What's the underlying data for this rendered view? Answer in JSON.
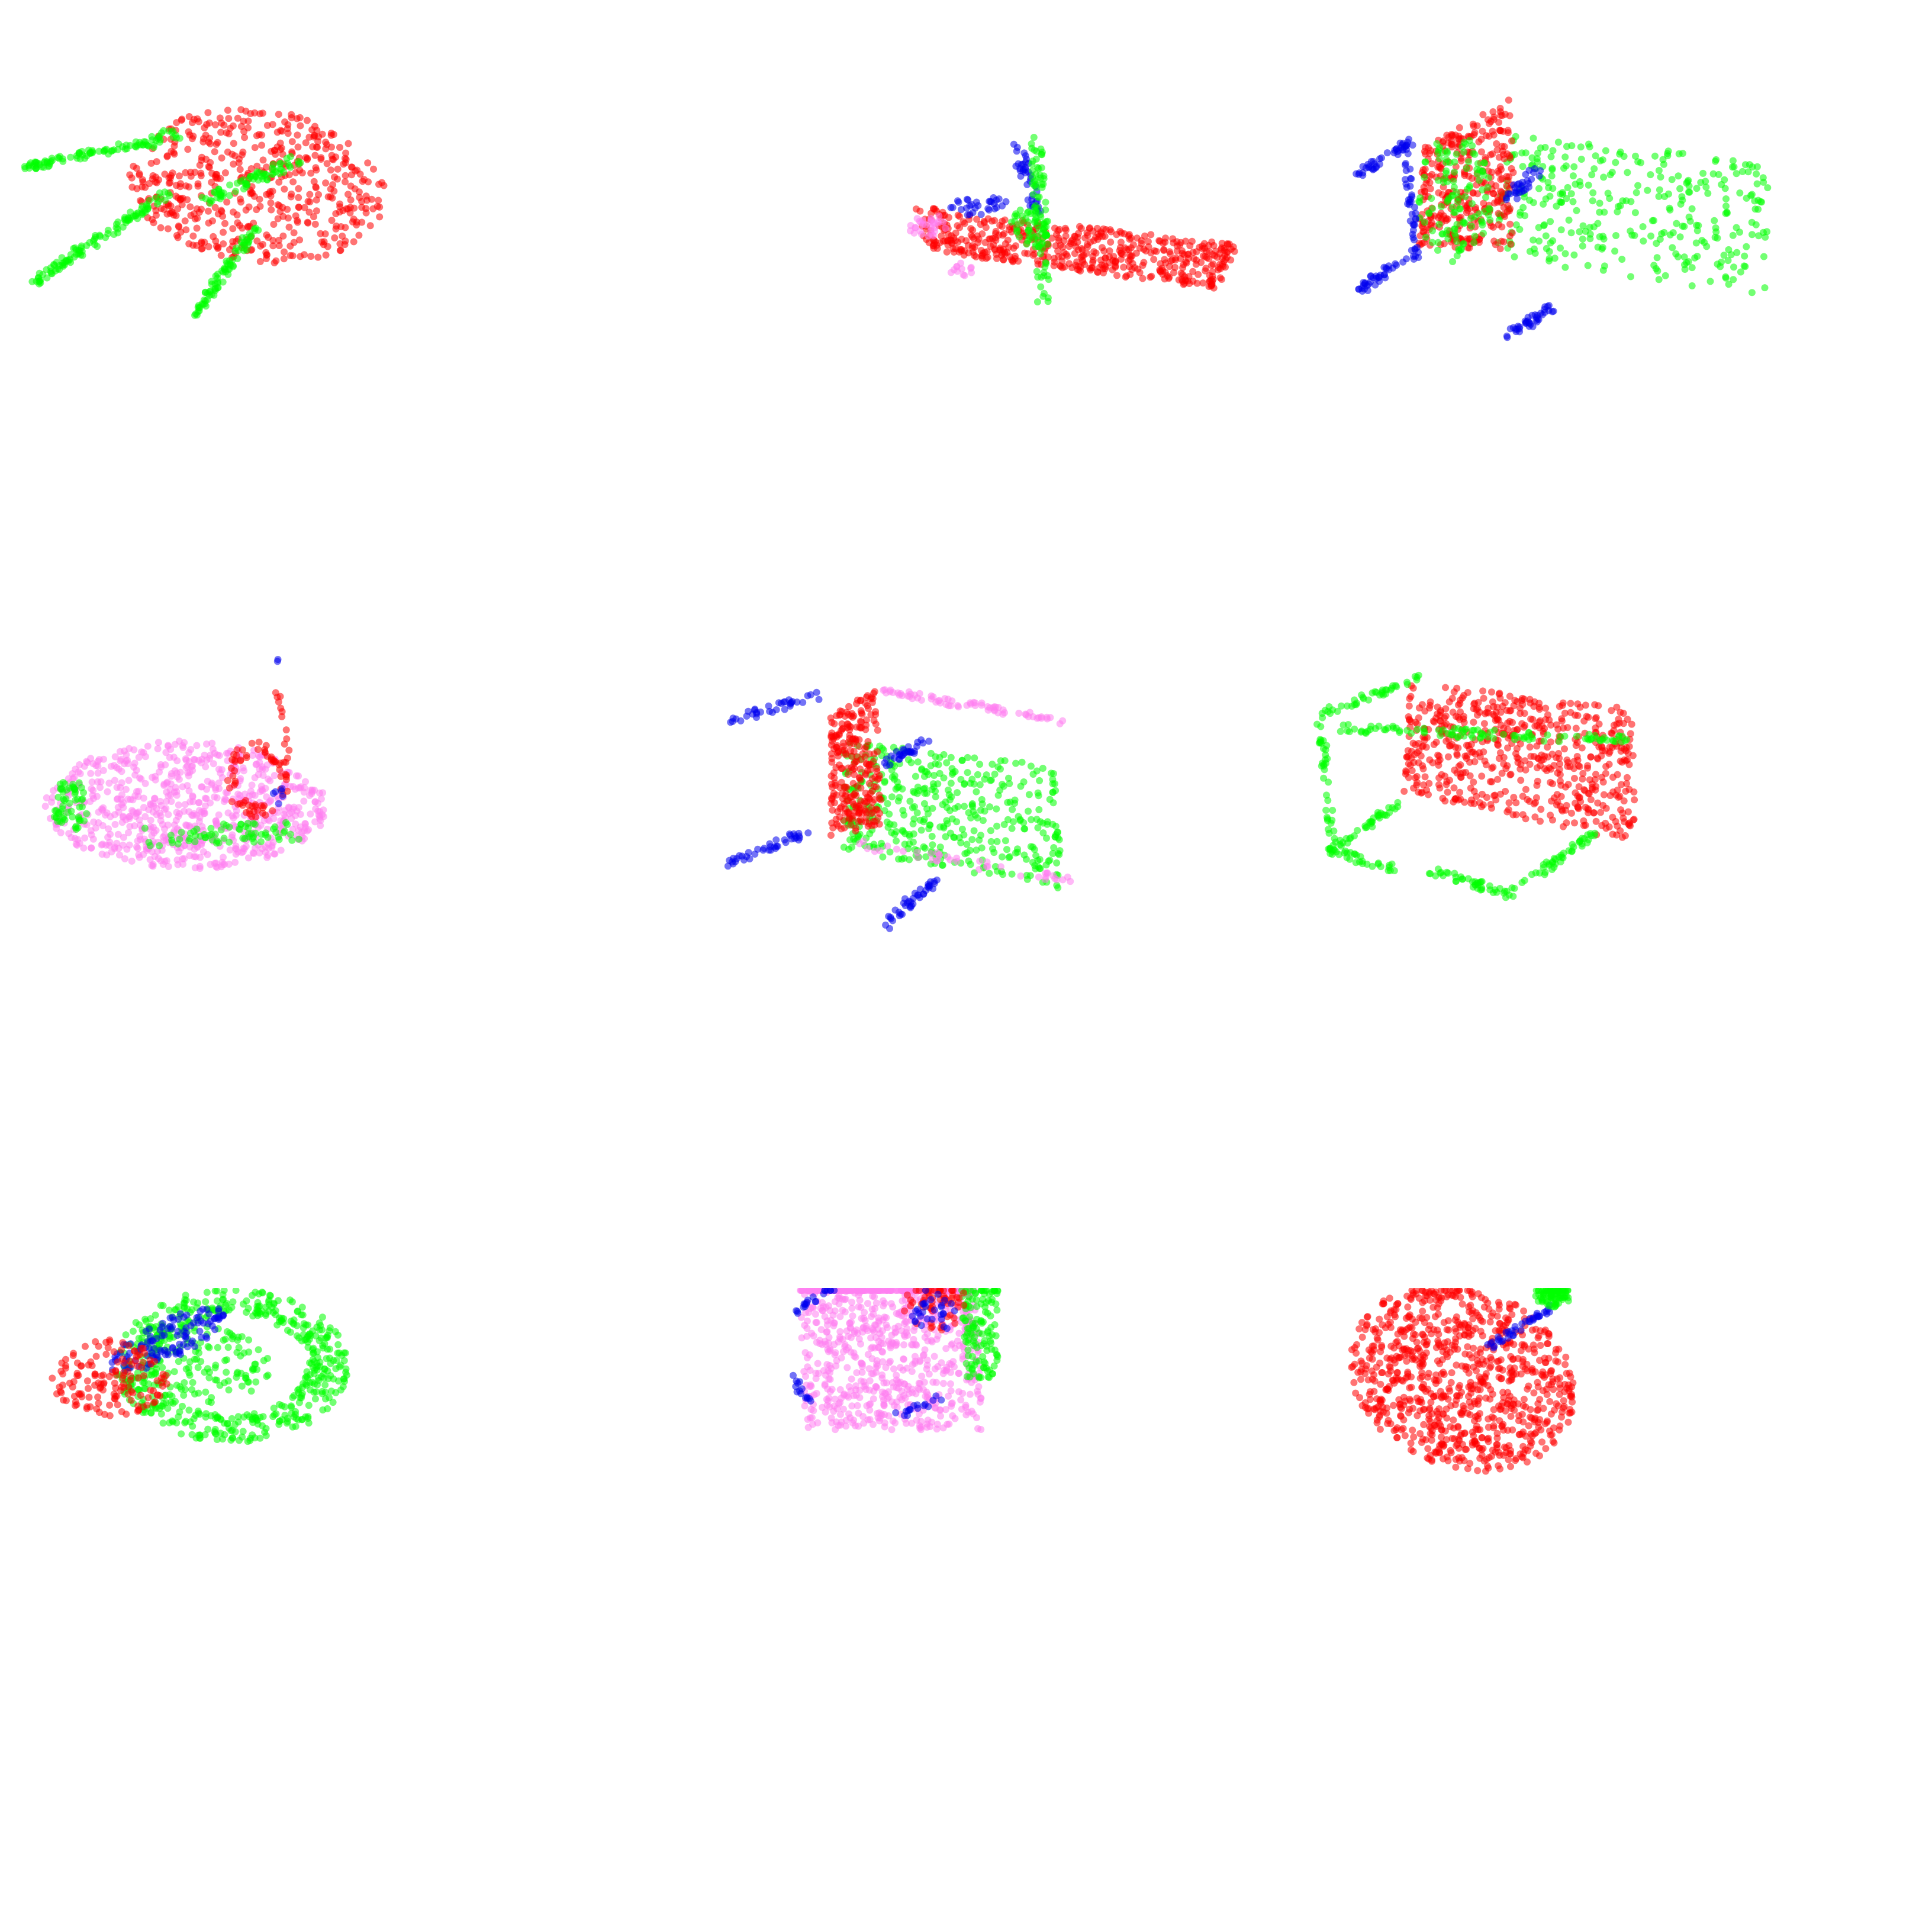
{
  "figure": {
    "rows": 3,
    "cols": 3,
    "background": "#ffffff",
    "point_opacity": 0.55,
    "colors": {
      "red": "#ff0000",
      "green": "#00ff00",
      "blue": "#0000ee",
      "pink": "#ff80f0"
    },
    "panels": [
      {
        "name": "round-table-with-three-legs",
        "row": 0,
        "col": 0
      },
      {
        "name": "skateboard",
        "row": 0,
        "col": 1
      },
      {
        "name": "chair-side-view",
        "row": 0,
        "col": 2
      },
      {
        "name": "car-lamp-object",
        "row": 1,
        "col": 0
      },
      {
        "name": "chair-frame",
        "row": 1,
        "col": 1
      },
      {
        "name": "table-frame-with-top",
        "row": 1,
        "col": 2
      },
      {
        "name": "mug-like-object",
        "row": 2,
        "col": 0
      },
      {
        "name": "pink-vehicle-body",
        "row": 2,
        "col": 1
      },
      {
        "name": "red-disc-with-handle",
        "row": 2,
        "col": 2
      }
    ]
  }
}
